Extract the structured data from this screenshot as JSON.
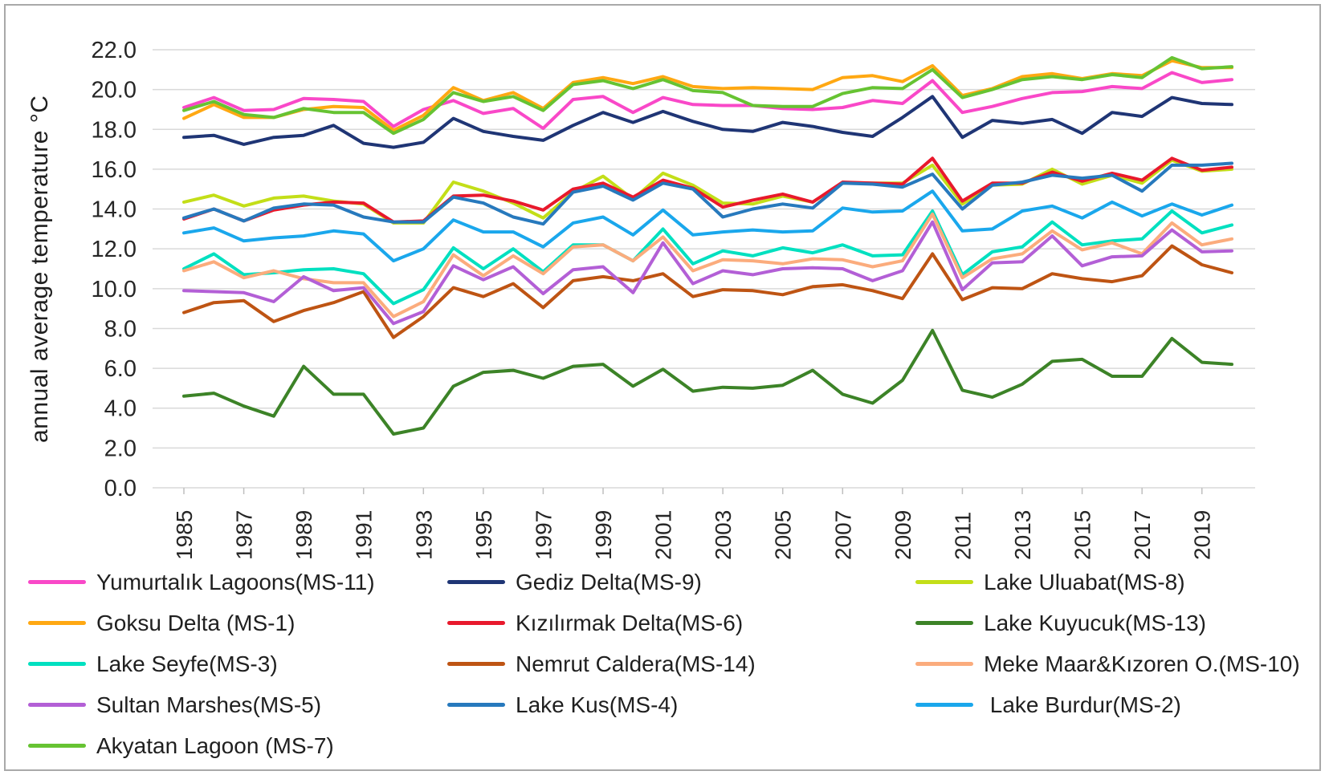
{
  "chart_data": {
    "type": "line",
    "ylabel": "annual average temperature °C",
    "ylim": [
      0,
      22
    ],
    "ytick_interval": 2,
    "grid": true,
    "legend_position": "bottom",
    "x": [
      1985,
      1986,
      1987,
      1988,
      1989,
      1990,
      1991,
      1992,
      1993,
      1994,
      1995,
      1996,
      1997,
      1998,
      1999,
      2000,
      2001,
      2002,
      2003,
      2004,
      2005,
      2006,
      2007,
      2008,
      2009,
      2010,
      2011,
      2012,
      2013,
      2014,
      2015,
      2016,
      2017,
      2018,
      2019,
      2020
    ],
    "x_tick_labels": [
      "1985",
      "1987",
      "1989",
      "1991",
      "1993",
      "1995",
      "1997",
      "1999",
      "2001",
      "2003",
      "2005",
      "2007",
      "2009",
      "2011",
      "2013",
      "2015",
      "2017",
      "2019"
    ],
    "series": [
      {
        "name": "Yumurtalık Lagoons(MS-11)",
        "color": "#F948C8",
        "values": [
          19.1,
          19.6,
          18.95,
          19.0,
          19.55,
          19.5,
          19.4,
          18.15,
          19.0,
          19.45,
          18.8,
          19.05,
          18.05,
          19.5,
          19.65,
          18.85,
          19.6,
          19.25,
          19.2,
          19.2,
          19.05,
          19.0,
          19.1,
          19.45,
          19.3,
          20.45,
          18.85,
          19.15,
          19.55,
          19.85,
          19.9,
          20.15,
          20.05,
          20.85,
          20.35,
          20.5
        ]
      },
      {
        "name": "Gediz Delta(MS-9)",
        "color": "#1F3575",
        "values": [
          17.6,
          17.7,
          17.25,
          17.6,
          17.7,
          18.2,
          17.3,
          17.1,
          17.35,
          18.55,
          17.9,
          17.65,
          17.45,
          18.2,
          18.85,
          18.35,
          18.9,
          18.4,
          18.0,
          17.9,
          18.35,
          18.15,
          17.85,
          17.65,
          18.6,
          19.65,
          17.6,
          18.45,
          18.3,
          18.5,
          17.8,
          18.85,
          18.65,
          19.6,
          19.3,
          19.25
        ]
      },
      {
        "name": "Lake Uluabat(MS-8)",
        "color": "#C3DE18",
        "values": [
          14.35,
          14.7,
          14.15,
          14.55,
          14.65,
          14.4,
          14.25,
          13.3,
          13.3,
          15.35,
          14.9,
          14.3,
          13.55,
          14.85,
          15.65,
          14.5,
          15.8,
          15.2,
          14.3,
          14.25,
          14.65,
          14.35,
          15.3,
          15.3,
          15.3,
          16.2,
          14.25,
          15.2,
          15.25,
          16.0,
          15.25,
          15.7,
          15.3,
          16.45,
          15.9,
          16.0
        ]
      },
      {
        "name": "Goksu Delta (MS-1)",
        "color": "#FFA812",
        "values": [
          18.55,
          19.25,
          18.6,
          18.6,
          19.0,
          19.15,
          19.1,
          17.95,
          18.7,
          20.1,
          19.45,
          19.85,
          19.05,
          20.35,
          20.6,
          20.3,
          20.65,
          20.15,
          20.05,
          20.1,
          20.05,
          20.0,
          20.6,
          20.7,
          20.4,
          21.2,
          19.7,
          20.05,
          20.65,
          20.8,
          20.55,
          20.8,
          20.7,
          21.45,
          21.1,
          21.1
        ]
      },
      {
        "name": "Kızılırmak Delta(MS-6)",
        "color": "#E8192C",
        "values": [
          13.5,
          14.0,
          13.4,
          13.95,
          14.2,
          14.35,
          14.3,
          13.35,
          13.4,
          14.65,
          14.7,
          14.4,
          13.95,
          15.0,
          15.3,
          14.6,
          15.45,
          15.05,
          14.1,
          14.45,
          14.75,
          14.35,
          15.35,
          15.3,
          15.25,
          16.55,
          14.4,
          15.3,
          15.3,
          15.85,
          15.4,
          15.8,
          15.45,
          16.55,
          15.95,
          16.1
        ]
      },
      {
        "name": "Lake Kuyucuk(MS-13)",
        "color": "#3C8327",
        "values": [
          4.6,
          4.75,
          4.1,
          3.6,
          6.1,
          4.7,
          4.7,
          2.7,
          3.0,
          5.1,
          5.8,
          5.9,
          5.5,
          6.1,
          6.2,
          5.1,
          5.95,
          4.85,
          5.05,
          5.0,
          5.15,
          5.9,
          4.7,
          4.25,
          5.4,
          7.9,
          4.9,
          4.55,
          5.2,
          6.35,
          6.45,
          5.6,
          5.6,
          7.5,
          6.3,
          6.2
        ]
      },
      {
        "name": "Lake Seyfe(MS-3)",
        "color": "#00E0C0",
        "values": [
          11.0,
          11.75,
          10.7,
          10.8,
          10.95,
          11.0,
          10.75,
          9.25,
          9.95,
          12.05,
          11.0,
          12.0,
          10.85,
          12.2,
          12.2,
          11.4,
          13.0,
          11.25,
          11.9,
          11.65,
          12.05,
          11.8,
          12.2,
          11.65,
          11.7,
          13.9,
          10.7,
          11.85,
          12.1,
          13.35,
          12.2,
          12.4,
          12.5,
          13.9,
          12.8,
          13.2
        ]
      },
      {
        "name": "Nemrut Caldera(MS-14)",
        "color": "#BE5413",
        "values": [
          8.8,
          9.3,
          9.4,
          8.35,
          8.9,
          9.3,
          9.85,
          7.55,
          8.6,
          10.05,
          9.6,
          10.25,
          9.05,
          10.4,
          10.6,
          10.4,
          10.75,
          9.6,
          9.95,
          9.9,
          9.7,
          10.1,
          10.2,
          9.9,
          9.5,
          11.75,
          9.45,
          10.05,
          10.0,
          10.75,
          10.5,
          10.35,
          10.65,
          12.15,
          11.2,
          10.8
        ]
      },
      {
        "name": "Meke Maar&Kızoren O.(MS-10)",
        "color": "#FBAC7D",
        "values": [
          10.9,
          11.35,
          10.55,
          10.9,
          10.5,
          10.3,
          10.3,
          8.6,
          9.35,
          11.7,
          10.65,
          11.65,
          10.75,
          12.1,
          12.2,
          11.4,
          12.6,
          10.9,
          11.45,
          11.4,
          11.25,
          11.5,
          11.45,
          11.1,
          11.4,
          13.75,
          10.55,
          11.5,
          11.75,
          12.9,
          11.95,
          12.3,
          11.75,
          13.3,
          12.2,
          12.5
        ]
      },
      {
        "name": "Sultan Marshes(MS-5)",
        "color": "#B35FD6",
        "values": [
          9.9,
          9.85,
          9.8,
          9.35,
          10.6,
          9.9,
          10.05,
          8.25,
          8.85,
          11.15,
          10.45,
          11.1,
          9.75,
          10.95,
          11.1,
          9.8,
          12.3,
          10.25,
          10.9,
          10.7,
          11.0,
          11.05,
          11.0,
          10.4,
          10.9,
          13.35,
          9.95,
          11.3,
          11.35,
          12.65,
          11.15,
          11.6,
          11.65,
          12.95,
          11.85,
          11.9
        ]
      },
      {
        "name": "Lake Kus(MS-4)",
        "color": "#2779BD",
        "values": [
          13.55,
          14.0,
          13.4,
          14.05,
          14.25,
          14.2,
          13.6,
          13.35,
          13.35,
          14.6,
          14.3,
          13.6,
          13.25,
          14.85,
          15.15,
          14.45,
          15.3,
          15.0,
          13.6,
          14.0,
          14.25,
          14.05,
          15.3,
          15.25,
          15.1,
          15.75,
          14.0,
          15.2,
          15.35,
          15.7,
          15.55,
          15.7,
          14.9,
          16.2,
          16.2,
          16.3
        ]
      },
      {
        "name": " Lake Burdur(MS-2)",
        "color": "#1AA7EC",
        "values": [
          12.8,
          13.05,
          12.4,
          12.55,
          12.65,
          12.9,
          12.75,
          11.4,
          12.0,
          13.45,
          12.85,
          12.85,
          12.1,
          13.3,
          13.6,
          12.7,
          13.95,
          12.7,
          12.85,
          12.95,
          12.85,
          12.9,
          14.05,
          13.85,
          13.9,
          14.9,
          12.9,
          13.0,
          13.9,
          14.15,
          13.55,
          14.35,
          13.65,
          14.25,
          13.7,
          14.2
        ]
      },
      {
        "name": "Akyatan Lagoon (MS-7)",
        "color": "#66C332",
        "values": [
          18.95,
          19.4,
          18.75,
          18.6,
          19.05,
          18.85,
          18.85,
          17.8,
          18.5,
          19.85,
          19.4,
          19.65,
          18.95,
          20.25,
          20.45,
          20.05,
          20.5,
          19.95,
          19.85,
          19.2,
          19.15,
          19.15,
          19.8,
          20.1,
          20.05,
          21.0,
          19.6,
          20.0,
          20.5,
          20.65,
          20.5,
          20.75,
          20.6,
          21.6,
          21.05,
          21.15
        ]
      }
    ],
    "legend_columns": [
      [
        0,
        3,
        6,
        9,
        12
      ],
      [
        1,
        4,
        7,
        10
      ],
      [
        2,
        5,
        8,
        11
      ]
    ]
  }
}
